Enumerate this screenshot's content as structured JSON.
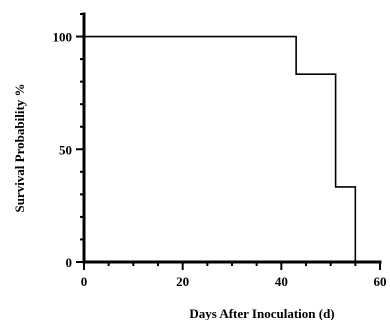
{
  "chart_data": {
    "type": "line",
    "step": true,
    "title": "",
    "xlabel": "Days After Inoculation (d)",
    "ylabel": "Survival Probability %",
    "xlim": [
      0,
      60
    ],
    "ylim": [
      0,
      110
    ],
    "xticks": [
      0,
      20,
      40,
      60
    ],
    "yticks": [
      0,
      50,
      100
    ],
    "x_tick_labels": [
      "0",
      "20",
      "40",
      "60"
    ],
    "y_tick_labels": [
      "0",
      "50",
      "100"
    ],
    "grid": false,
    "legend": "none",
    "series": [
      {
        "x": [
          0,
          43,
          51,
          55
        ],
        "y": [
          100,
          83.3,
          33.3,
          0
        ]
      }
    ]
  }
}
